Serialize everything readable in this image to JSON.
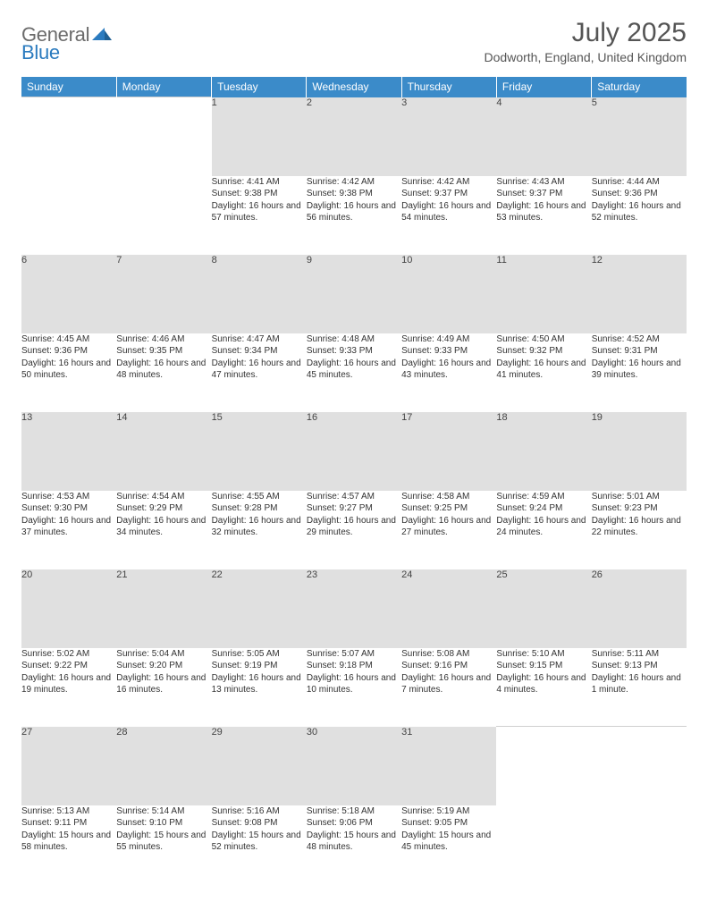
{
  "brand": {
    "text_gray": "General",
    "text_blue": "Blue"
  },
  "header": {
    "month_title": "July 2025",
    "location": "Dodworth, England, United Kingdom"
  },
  "colors": {
    "header_bg": "#3b8bc9",
    "header_text": "#ffffff",
    "daynum_bg": "#e0e0e0",
    "page_bg": "#ffffff",
    "text": "#333333",
    "brand_gray": "#6b6b6b",
    "brand_blue": "#2b7bbf"
  },
  "weekdays": [
    "Sunday",
    "Monday",
    "Tuesday",
    "Wednesday",
    "Thursday",
    "Friday",
    "Saturday"
  ],
  "weeks": [
    [
      null,
      null,
      {
        "n": "1",
        "sunrise": "Sunrise: 4:41 AM",
        "sunset": "Sunset: 9:38 PM",
        "daylight": "Daylight: 16 hours and 57 minutes."
      },
      {
        "n": "2",
        "sunrise": "Sunrise: 4:42 AM",
        "sunset": "Sunset: 9:38 PM",
        "daylight": "Daylight: 16 hours and 56 minutes."
      },
      {
        "n": "3",
        "sunrise": "Sunrise: 4:42 AM",
        "sunset": "Sunset: 9:37 PM",
        "daylight": "Daylight: 16 hours and 54 minutes."
      },
      {
        "n": "4",
        "sunrise": "Sunrise: 4:43 AM",
        "sunset": "Sunset: 9:37 PM",
        "daylight": "Daylight: 16 hours and 53 minutes."
      },
      {
        "n": "5",
        "sunrise": "Sunrise: 4:44 AM",
        "sunset": "Sunset: 9:36 PM",
        "daylight": "Daylight: 16 hours and 52 minutes."
      }
    ],
    [
      {
        "n": "6",
        "sunrise": "Sunrise: 4:45 AM",
        "sunset": "Sunset: 9:36 PM",
        "daylight": "Daylight: 16 hours and 50 minutes."
      },
      {
        "n": "7",
        "sunrise": "Sunrise: 4:46 AM",
        "sunset": "Sunset: 9:35 PM",
        "daylight": "Daylight: 16 hours and 48 minutes."
      },
      {
        "n": "8",
        "sunrise": "Sunrise: 4:47 AM",
        "sunset": "Sunset: 9:34 PM",
        "daylight": "Daylight: 16 hours and 47 minutes."
      },
      {
        "n": "9",
        "sunrise": "Sunrise: 4:48 AM",
        "sunset": "Sunset: 9:33 PM",
        "daylight": "Daylight: 16 hours and 45 minutes."
      },
      {
        "n": "10",
        "sunrise": "Sunrise: 4:49 AM",
        "sunset": "Sunset: 9:33 PM",
        "daylight": "Daylight: 16 hours and 43 minutes."
      },
      {
        "n": "11",
        "sunrise": "Sunrise: 4:50 AM",
        "sunset": "Sunset: 9:32 PM",
        "daylight": "Daylight: 16 hours and 41 minutes."
      },
      {
        "n": "12",
        "sunrise": "Sunrise: 4:52 AM",
        "sunset": "Sunset: 9:31 PM",
        "daylight": "Daylight: 16 hours and 39 minutes."
      }
    ],
    [
      {
        "n": "13",
        "sunrise": "Sunrise: 4:53 AM",
        "sunset": "Sunset: 9:30 PM",
        "daylight": "Daylight: 16 hours and 37 minutes."
      },
      {
        "n": "14",
        "sunrise": "Sunrise: 4:54 AM",
        "sunset": "Sunset: 9:29 PM",
        "daylight": "Daylight: 16 hours and 34 minutes."
      },
      {
        "n": "15",
        "sunrise": "Sunrise: 4:55 AM",
        "sunset": "Sunset: 9:28 PM",
        "daylight": "Daylight: 16 hours and 32 minutes."
      },
      {
        "n": "16",
        "sunrise": "Sunrise: 4:57 AM",
        "sunset": "Sunset: 9:27 PM",
        "daylight": "Daylight: 16 hours and 29 minutes."
      },
      {
        "n": "17",
        "sunrise": "Sunrise: 4:58 AM",
        "sunset": "Sunset: 9:25 PM",
        "daylight": "Daylight: 16 hours and 27 minutes."
      },
      {
        "n": "18",
        "sunrise": "Sunrise: 4:59 AM",
        "sunset": "Sunset: 9:24 PM",
        "daylight": "Daylight: 16 hours and 24 minutes."
      },
      {
        "n": "19",
        "sunrise": "Sunrise: 5:01 AM",
        "sunset": "Sunset: 9:23 PM",
        "daylight": "Daylight: 16 hours and 22 minutes."
      }
    ],
    [
      {
        "n": "20",
        "sunrise": "Sunrise: 5:02 AM",
        "sunset": "Sunset: 9:22 PM",
        "daylight": "Daylight: 16 hours and 19 minutes."
      },
      {
        "n": "21",
        "sunrise": "Sunrise: 5:04 AM",
        "sunset": "Sunset: 9:20 PM",
        "daylight": "Daylight: 16 hours and 16 minutes."
      },
      {
        "n": "22",
        "sunrise": "Sunrise: 5:05 AM",
        "sunset": "Sunset: 9:19 PM",
        "daylight": "Daylight: 16 hours and 13 minutes."
      },
      {
        "n": "23",
        "sunrise": "Sunrise: 5:07 AM",
        "sunset": "Sunset: 9:18 PM",
        "daylight": "Daylight: 16 hours and 10 minutes."
      },
      {
        "n": "24",
        "sunrise": "Sunrise: 5:08 AM",
        "sunset": "Sunset: 9:16 PM",
        "daylight": "Daylight: 16 hours and 7 minutes."
      },
      {
        "n": "25",
        "sunrise": "Sunrise: 5:10 AM",
        "sunset": "Sunset: 9:15 PM",
        "daylight": "Daylight: 16 hours and 4 minutes."
      },
      {
        "n": "26",
        "sunrise": "Sunrise: 5:11 AM",
        "sunset": "Sunset: 9:13 PM",
        "daylight": "Daylight: 16 hours and 1 minute."
      }
    ],
    [
      {
        "n": "27",
        "sunrise": "Sunrise: 5:13 AM",
        "sunset": "Sunset: 9:11 PM",
        "daylight": "Daylight: 15 hours and 58 minutes."
      },
      {
        "n": "28",
        "sunrise": "Sunrise: 5:14 AM",
        "sunset": "Sunset: 9:10 PM",
        "daylight": "Daylight: 15 hours and 55 minutes."
      },
      {
        "n": "29",
        "sunrise": "Sunrise: 5:16 AM",
        "sunset": "Sunset: 9:08 PM",
        "daylight": "Daylight: 15 hours and 52 minutes."
      },
      {
        "n": "30",
        "sunrise": "Sunrise: 5:18 AM",
        "sunset": "Sunset: 9:06 PM",
        "daylight": "Daylight: 15 hours and 48 minutes."
      },
      {
        "n": "31",
        "sunrise": "Sunrise: 5:19 AM",
        "sunset": "Sunset: 9:05 PM",
        "daylight": "Daylight: 15 hours and 45 minutes."
      },
      null,
      null
    ]
  ]
}
